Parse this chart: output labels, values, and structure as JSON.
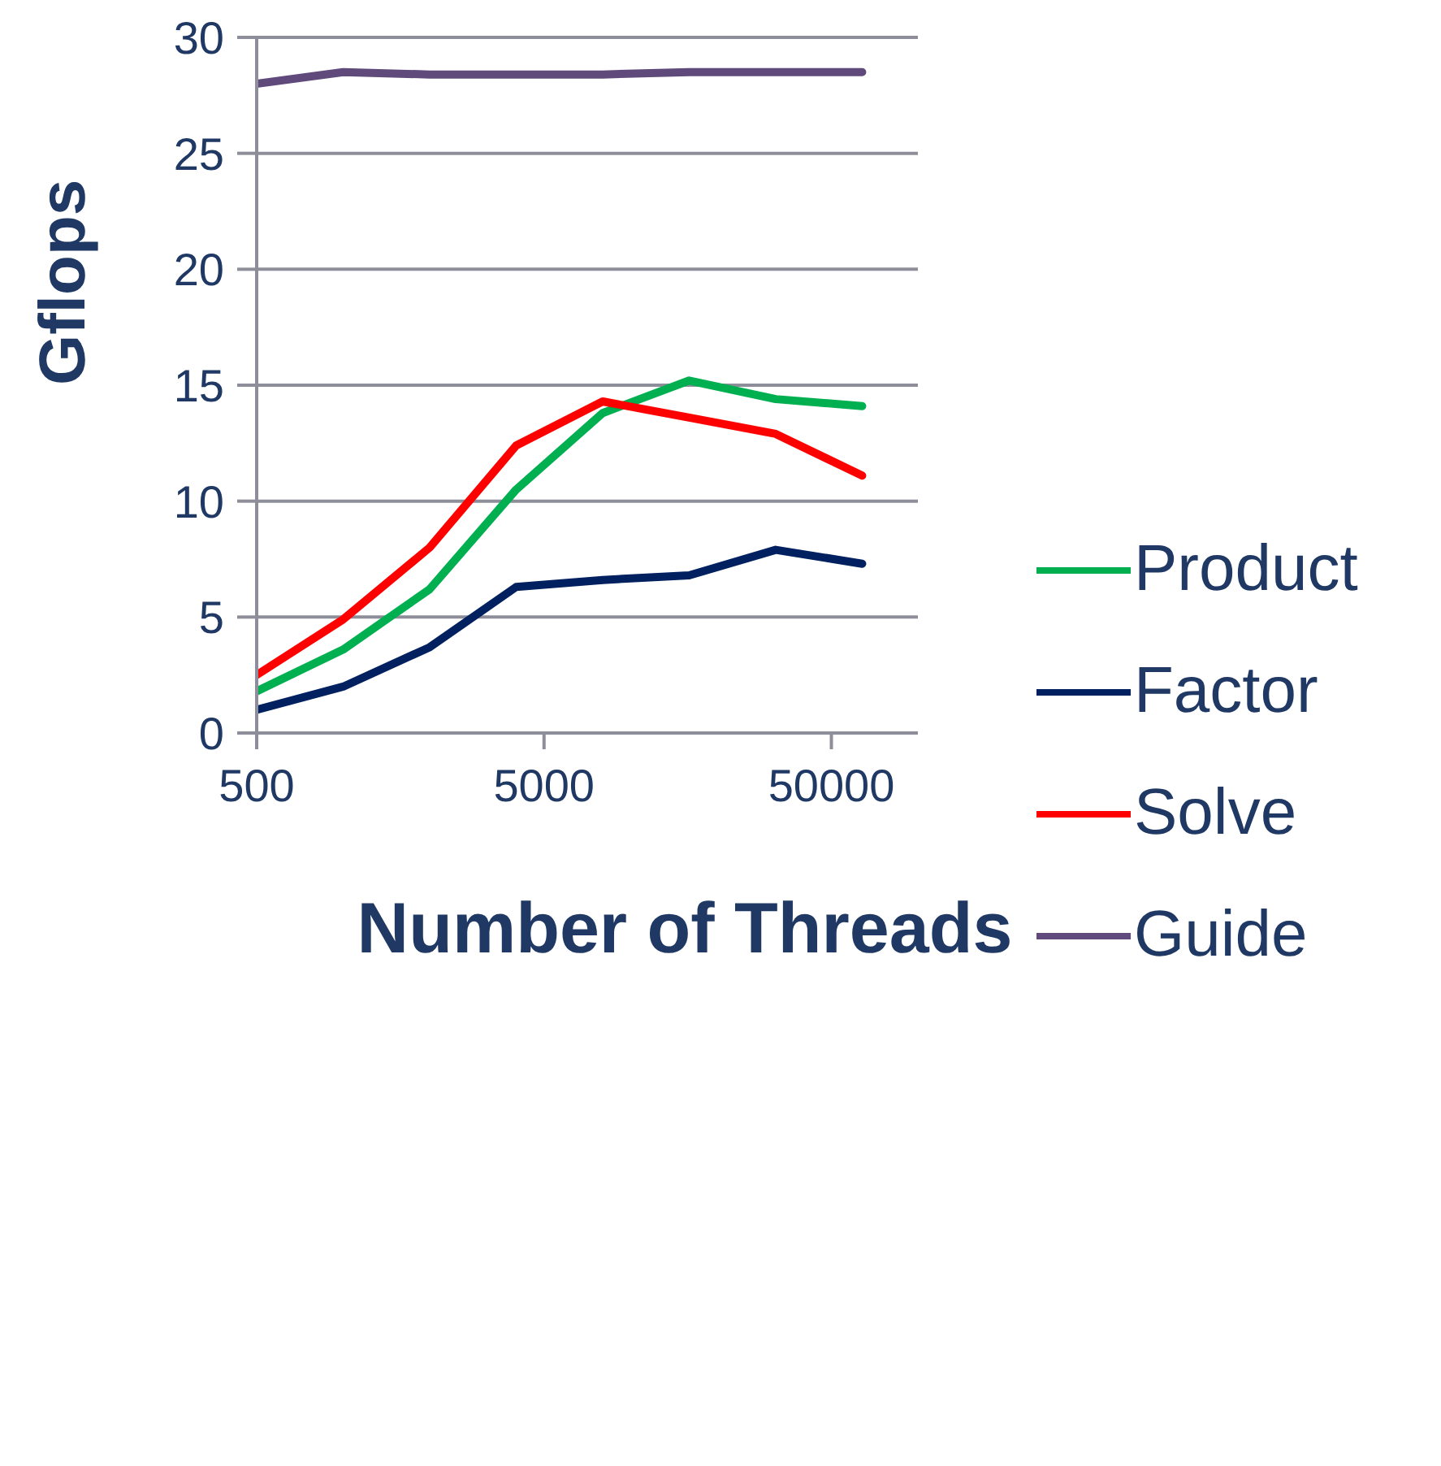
{
  "chart_data": {
    "type": "line",
    "xlabel": "Number of Threads",
    "ylabel": "Gflops",
    "x": [
      500,
      1000,
      2000,
      4000,
      8000,
      16000,
      32000,
      64000
    ],
    "series": [
      {
        "name": "Product",
        "color": "#00b050",
        "values": [
          1.8,
          3.6,
          6.2,
          10.5,
          13.8,
          15.2,
          14.4,
          14.1
        ]
      },
      {
        "name": "Factor",
        "color": "#002060",
        "values": [
          1.0,
          2.0,
          3.7,
          6.3,
          6.6,
          6.8,
          7.9,
          7.3
        ]
      },
      {
        "name": "Solve",
        "color": "#ff0000",
        "values": [
          2.5,
          4.9,
          8.0,
          12.4,
          14.3,
          13.6,
          12.9,
          11.1
        ]
      },
      {
        "name": "Guide",
        "color": "#604a7b",
        "values": [
          28.0,
          28.5,
          28.4,
          28.4,
          28.4,
          28.5,
          28.5,
          28.5
        ]
      }
    ],
    "log": "x",
    "xlim": [
      500,
      100000
    ],
    "xticks": [
      500,
      5000,
      50000
    ],
    "ylim": [
      0,
      30
    ],
    "yticks": [
      0,
      5,
      10,
      15,
      20,
      25,
      30
    ],
    "grid": "y",
    "legend": "right",
    "marker": "none",
    "line_style": "solid"
  }
}
